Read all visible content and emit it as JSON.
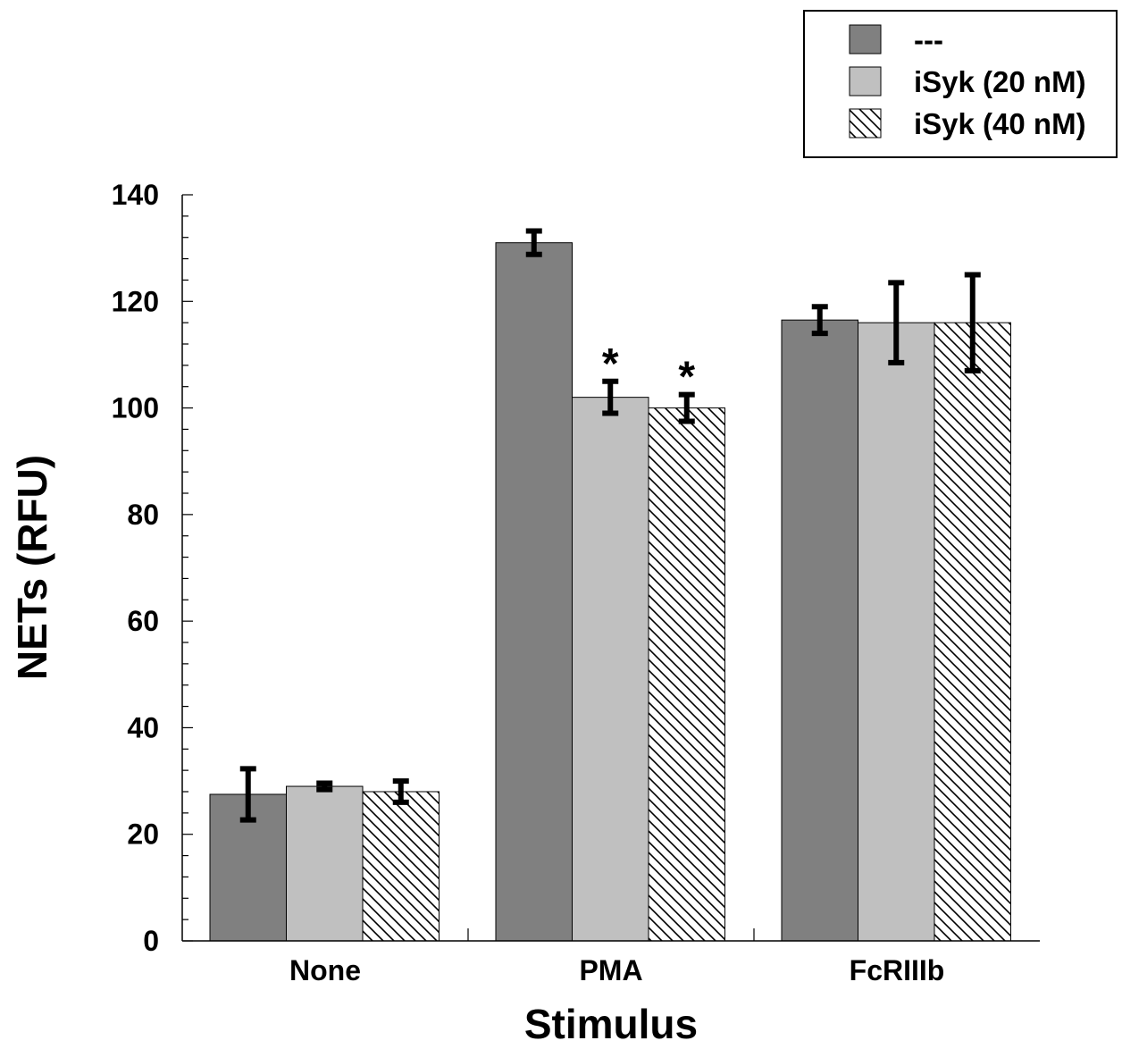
{
  "chart_data": {
    "type": "bar",
    "title": "",
    "xlabel": "Stimulus",
    "ylabel": "NETs  (RFU)",
    "ylim": [
      0,
      140
    ],
    "yticks": [
      0,
      20,
      40,
      60,
      80,
      100,
      120,
      140
    ],
    "categories": [
      "None",
      "PMA",
      "FcRIIIb"
    ],
    "series": [
      {
        "name": "---",
        "fill": "solid",
        "color": "#808080",
        "values": [
          27.5,
          131,
          116.5
        ],
        "errors": [
          4.8,
          2.2,
          2.5
        ]
      },
      {
        "name": "iSyk (20 nM)",
        "fill": "solid",
        "color": "#c0c0c0",
        "values": [
          29,
          102,
          116
        ],
        "errors": [
          0.6,
          3,
          7.5
        ]
      },
      {
        "name": "iSyk (40 nM)",
        "fill": "hatch",
        "color": "#ffffff",
        "values": [
          28,
          100,
          116
        ],
        "errors": [
          2,
          2.5,
          9
        ]
      }
    ],
    "significance": [
      {
        "category": "PMA",
        "series": "iSyk (20 nM)",
        "label": "*"
      },
      {
        "category": "PMA",
        "series": "iSyk (40 nM)",
        "label": "*"
      }
    ],
    "legend_position": "top-right",
    "grid": false
  }
}
